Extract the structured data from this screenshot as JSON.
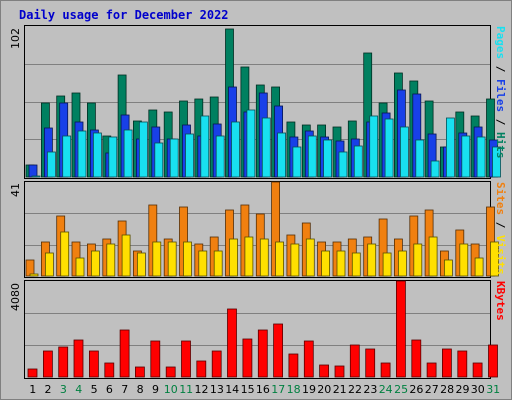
{
  "title": "Daily usage for December 2022",
  "colors": {
    "hits": "#008060",
    "files": "#1840e8",
    "pages": "#18e0f0",
    "visits": "#f08010",
    "sites": "#ffe000",
    "kbytes": "#ff0000",
    "weekday_label": "#000000",
    "weekend_label": "#008040",
    "title": "#0000cc"
  },
  "weekend_days": [
    3,
    4,
    10,
    11,
    17,
    18,
    24,
    25,
    31
  ],
  "chart_data": [
    {
      "type": "bar",
      "name": "hits-files-pages",
      "categories": [
        "1",
        "2",
        "3",
        "4",
        "5",
        "6",
        "7",
        "8",
        "9",
        "10",
        "11",
        "12",
        "13",
        "14",
        "15",
        "16",
        "17",
        "18",
        "19",
        "20",
        "21",
        "22",
        "23",
        "24",
        "25",
        "26",
        "27",
        "28",
        "29",
        "30",
        "31"
      ],
      "ymax_label": "102",
      "ylim": [
        0,
        102
      ],
      "series": [
        {
          "name": "Hits",
          "color": "#008060",
          "values": [
            8,
            50,
            55,
            57,
            50,
            28,
            69,
            38,
            45,
            44,
            51,
            53,
            54,
            100,
            74,
            62,
            61,
            37,
            35,
            35,
            34,
            38,
            84,
            50,
            70,
            65,
            51,
            20,
            44,
            41,
            53
          ]
        },
        {
          "name": "Files",
          "color": "#1840e8",
          "values": [
            8,
            33,
            50,
            37,
            32,
            16,
            42,
            26,
            34,
            26,
            35,
            28,
            36,
            61,
            44,
            57,
            48,
            27,
            31,
            27,
            24,
            26,
            37,
            43,
            59,
            56,
            29,
            20,
            30,
            34,
            25
          ]
        },
        {
          "name": "Pages",
          "color": "#18e0f0",
          "values": [
            0,
            17,
            28,
            31,
            30,
            27,
            32,
            37,
            23,
            26,
            29,
            41,
            28,
            37,
            45,
            40,
            30,
            20,
            28,
            25,
            17,
            21,
            41,
            39,
            34,
            25,
            11,
            40,
            28,
            27,
            20
          ]
        }
      ],
      "vertical_label": {
        "parts": [
          {
            "text": "Pages",
            "color": "#18e0f0"
          },
          {
            "text": " / ",
            "color": "#000000"
          },
          {
            "text": "Files",
            "color": "#1840e8"
          },
          {
            "text": " / ",
            "color": "#000000"
          },
          {
            "text": "Hits",
            "color": "#008060"
          }
        ]
      }
    },
    {
      "type": "bar",
      "name": "sites-visits",
      "categories": [
        "1",
        "2",
        "3",
        "4",
        "5",
        "6",
        "7",
        "8",
        "9",
        "10",
        "11",
        "12",
        "13",
        "14",
        "15",
        "16",
        "17",
        "18",
        "19",
        "20",
        "21",
        "22",
        "23",
        "24",
        "25",
        "26",
        "27",
        "28",
        "29",
        "30",
        "31"
      ],
      "ymax_label": "41",
      "ylim": [
        0,
        41
      ],
      "series": [
        {
          "name": "Visits",
          "color": "#f08010",
          "values": [
            7,
            15,
            26,
            15,
            14,
            16,
            24,
            11,
            31,
            16,
            30,
            14,
            17,
            29,
            31,
            27,
            41,
            18,
            23,
            15,
            15,
            16,
            17,
            25,
            16,
            26,
            29,
            11,
            20,
            14,
            30
          ]
        },
        {
          "name": "Sites",
          "color": "#ffe000",
          "values": [
            1,
            10,
            19,
            8,
            11,
            14,
            18,
            10,
            15,
            15,
            15,
            11,
            11,
            16,
            17,
            16,
            15,
            14,
            16,
            11,
            11,
            10,
            14,
            10,
            11,
            14,
            17,
            7,
            14,
            8,
            15
          ]
        }
      ],
      "vertical_label": {
        "parts": [
          {
            "text": "Sites",
            "color": "#f08010"
          },
          {
            "text": " / ",
            "color": "#000000"
          },
          {
            "text": "Visits",
            "color": "#ffe000"
          }
        ]
      }
    },
    {
      "type": "bar",
      "name": "kbytes",
      "categories": [
        "1",
        "2",
        "3",
        "4",
        "5",
        "6",
        "7",
        "8",
        "9",
        "10",
        "11",
        "12",
        "13",
        "14",
        "15",
        "16",
        "17",
        "18",
        "19",
        "20",
        "21",
        "22",
        "23",
        "24",
        "25",
        "26",
        "27",
        "28",
        "29",
        "30",
        "31"
      ],
      "ymax_label": "4080",
      "ylim": [
        0,
        4080
      ],
      "series": [
        {
          "name": "KBytes",
          "color": "#ff0000",
          "values": [
            330,
            1110,
            1270,
            1580,
            1110,
            610,
            1980,
            410,
            1540,
            410,
            1520,
            690,
            1110,
            2880,
            1610,
            2010,
            2240,
            990,
            1510,
            490,
            450,
            1350,
            1190,
            600,
            4080,
            1560,
            610,
            1190,
            1100,
            610,
            1350
          ]
        }
      ],
      "vertical_label": {
        "parts": [
          {
            "text": "KBytes",
            "color": "#ff0000"
          }
        ]
      }
    }
  ]
}
